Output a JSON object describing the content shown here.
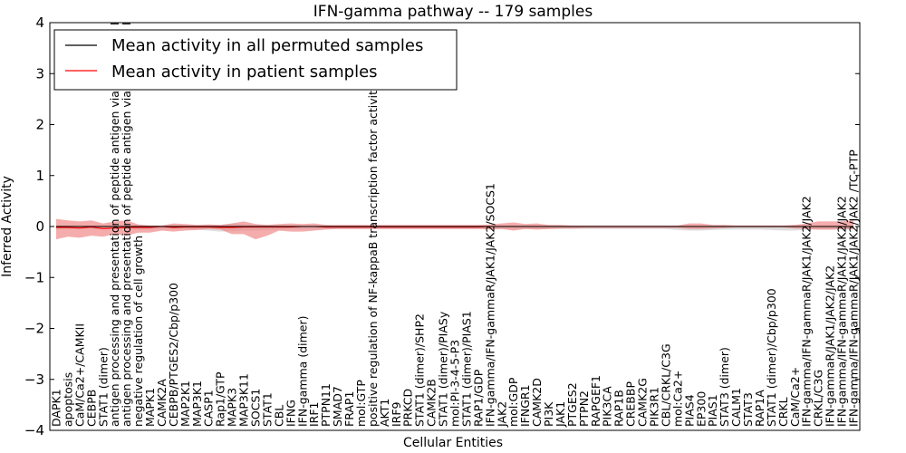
{
  "chart_data": {
    "type": "line",
    "title": "IFN-gamma pathway -- 179 samples",
    "xlabel": "Cellular Entities",
    "ylabel": "Inferred Activity",
    "ylim": [
      -4,
      4
    ],
    "yticks": [
      "−4",
      "−3",
      "−2",
      "−1",
      "0",
      "1",
      "2",
      "3",
      "4"
    ],
    "legend_position": "upper-left",
    "categories": [
      "DAPK1",
      "apoptosis",
      "CaM/Ca2+/CAMKII",
      "CEBPB",
      "STAT1 (dimer)",
      "antigen processing and presentation of peptide antigen via MHC class I",
      "antigen processing and presentation of peptide antigen via MHC class II",
      "negative regulation of cell growth",
      "MAPK1",
      "CAMK2A",
      "CEBPB/PTGES2/Cbp/p300",
      "MAP2K1",
      "MAP3K1",
      "CASP1",
      "Rap1/GTP",
      "MAPK3",
      "MAP3K11",
      "SOCS1",
      "STAT1",
      "CBL",
      "IFNG",
      "IFN-gamma (dimer)",
      "IRF1",
      "PTPN11",
      "SMAD7",
      "FRAP1",
      "mol:GTP",
      "positive regulation of NF-kappaB transcription factor activity",
      "AKT1",
      "IRF9",
      "PRKCD",
      "STAT1 (dimer)/SHP2",
      "CAMK2B",
      "STAT1 (dimer)/PIASy",
      "mol:PI-3-4-5-P3",
      "STAT1 (dimer)/PIAS1",
      "RAP1/GDP",
      "IFN-gamma/IFN-gammaR/JAK1/JAK2/SOCS1",
      "JAK2",
      "mol:GDP",
      "IFNGR1",
      "CAMK2D",
      "PI3K",
      "JAK1",
      "PTGES2",
      "PTPN2",
      "RAPGEF1",
      "PIK3CA",
      "RAP1B",
      "CREBBP",
      "CAMK2G",
      "PIK3R1",
      "CBL/CRKL/C3G",
      "mol:Ca2+",
      "PIAS4",
      "EP300",
      "PIAS1",
      "STAT3 (dimer)",
      "CALM1",
      "STAT3",
      "RAP1A",
      "STAT1 (dimer)/Cbp/p300",
      "CRKL",
      "CaM/Ca2+",
      "IFN-gamma/IFN-gammaR/JAK1/JAK2/JAK2",
      "CRKL/C3G",
      "IFN-gammaR/JAK1/JAK2/JAK2",
      "IFN-gamma/IFN-gammaR/JAK1/JAK2/JAK2",
      "IFN-gamma/IFN-gammaR/JAK1/JAK2/JAK2 /TC-PTP"
    ],
    "series": [
      {
        "name": "Mean activity in all permuted samples",
        "color": "#000000",
        "values": [
          0,
          0,
          0,
          0,
          0,
          0,
          0,
          0,
          0,
          0,
          0,
          0,
          0,
          0,
          0,
          0,
          0,
          0,
          0,
          0,
          0,
          0,
          0,
          0,
          0,
          0,
          0,
          0,
          0,
          0,
          0,
          0,
          0,
          0,
          0,
          0,
          0,
          0,
          0,
          0,
          0,
          0,
          0,
          0,
          0,
          0,
          0,
          0,
          0,
          0,
          0,
          0,
          0,
          0,
          0,
          0,
          0,
          0,
          0,
          0,
          0,
          0,
          0,
          0,
          0,
          0,
          0,
          0,
          0
        ],
        "band_upper": [
          0.02,
          0.02,
          0.02,
          0.02,
          0.02,
          0.02,
          0.02,
          0.02,
          0.02,
          0.02,
          0.02,
          0.02,
          0.02,
          0.03,
          0.03,
          0.06,
          0.05,
          0.03,
          0.03,
          0.02,
          0.02,
          0.02,
          0.02,
          0.02,
          0.02,
          0.02,
          0.02,
          0.02,
          0.02,
          0.02,
          0.02,
          0.02,
          0.02,
          0.02,
          0.02,
          0.02,
          0.02,
          0.02,
          0.02,
          0.02,
          0.02,
          0.02,
          0.02,
          0.02,
          0.02,
          0.02,
          0.02,
          0.02,
          0.02,
          0.02,
          0.02,
          0.02,
          0.02,
          0.02,
          0.02,
          0.02,
          0.02,
          0.02,
          0.02,
          0.02,
          0.02,
          0.02,
          0.02,
          0.02,
          0.02,
          0.02,
          0.02,
          0.02,
          0.02
        ],
        "band_lower": [
          -0.06,
          -0.05,
          -0.05,
          -0.05,
          -0.05,
          -0.05,
          -0.05,
          -0.06,
          -0.06,
          -0.05,
          -0.05,
          -0.05,
          -0.06,
          -0.08,
          -0.1,
          -0.09,
          -0.08,
          -0.08,
          -0.07,
          -0.06,
          -0.05,
          -0.05,
          -0.05,
          -0.05,
          -0.05,
          -0.05,
          -0.05,
          -0.05,
          -0.05,
          -0.05,
          -0.05,
          -0.05,
          -0.05,
          -0.05,
          -0.05,
          -0.05,
          -0.05,
          -0.05,
          -0.05,
          -0.05,
          -0.05,
          -0.05,
          -0.05,
          -0.05,
          -0.05,
          -0.05,
          -0.05,
          -0.05,
          -0.05,
          -0.05,
          -0.05,
          -0.05,
          -0.05,
          -0.07,
          -0.08,
          -0.08,
          -0.07,
          -0.06,
          -0.06,
          -0.06,
          -0.06,
          -0.07,
          -0.08,
          -0.08,
          -0.06,
          -0.06,
          -0.06,
          -0.06,
          -0.06
        ]
      },
      {
        "name": "Mean activity in patient samples",
        "color": "#ff0000",
        "values": [
          -0.02,
          -0.02,
          -0.03,
          -0.01,
          -0.04,
          -0.03,
          -0.02,
          -0.02,
          -0.02,
          0.0,
          -0.02,
          -0.01,
          -0.01,
          -0.01,
          -0.02,
          -0.02,
          -0.01,
          -0.01,
          -0.01,
          -0.01,
          -0.01,
          0.0,
          0.0,
          -0.01,
          -0.01,
          -0.01,
          -0.01,
          -0.01,
          -0.01,
          -0.01,
          -0.01,
          -0.01,
          -0.01,
          -0.01,
          -0.01,
          -0.01,
          -0.01,
          0.0,
          0.0,
          0.0,
          0.0,
          0.0,
          0.0,
          0.0,
          0.0,
          0.0,
          0.0,
          0.0,
          0.0,
          0.0,
          0.0,
          0.0,
          0.0,
          0.0,
          0.0,
          0.0,
          0.0,
          0.0,
          0.0,
          0.0,
          0.0,
          0.0,
          0.0,
          0.0,
          0.0,
          0.0,
          0.0,
          0.0,
          0.0
        ],
        "band_upper": [
          0.15,
          0.12,
          0.1,
          0.12,
          0.06,
          0.1,
          0.12,
          0.04,
          0.02,
          0.02,
          0.06,
          0.05,
          0.03,
          0.04,
          0.03,
          0.06,
          0.1,
          0.05,
          0.03,
          0.05,
          0.06,
          0.05,
          0.06,
          0.03,
          0.03,
          0.03,
          0.03,
          0.03,
          0.03,
          0.03,
          0.03,
          0.03,
          0.03,
          0.03,
          0.03,
          0.03,
          0.03,
          0.04,
          0.06,
          0.08,
          0.05,
          0.06,
          0.03,
          0.03,
          0.02,
          0.02,
          0.02,
          0.02,
          0.02,
          0.02,
          0.02,
          0.02,
          0.02,
          0.02,
          0.06,
          0.06,
          0.03,
          0.03,
          0.02,
          0.02,
          0.02,
          0.02,
          0.02,
          0.03,
          0.06,
          0.1,
          0.1,
          0.1,
          0.12
        ],
        "band_lower": [
          -0.25,
          -0.2,
          -0.22,
          -0.18,
          -0.2,
          -0.15,
          -0.18,
          -0.12,
          -0.12,
          -0.08,
          -0.1,
          -0.08,
          -0.07,
          -0.05,
          -0.06,
          -0.15,
          -0.15,
          -0.25,
          -0.18,
          -0.08,
          -0.1,
          -0.1,
          -0.08,
          -0.06,
          -0.05,
          -0.05,
          -0.05,
          -0.05,
          -0.05,
          -0.05,
          -0.05,
          -0.05,
          -0.05,
          -0.05,
          -0.05,
          -0.05,
          -0.05,
          -0.06,
          -0.05,
          -0.08,
          -0.05,
          -0.06,
          -0.05,
          -0.04,
          -0.04,
          -0.03,
          -0.03,
          -0.03,
          -0.03,
          -0.03,
          -0.03,
          -0.03,
          -0.03,
          -0.03,
          -0.05,
          -0.05,
          -0.04,
          -0.03,
          -0.02,
          -0.02,
          -0.02,
          -0.02,
          -0.02,
          -0.04,
          -0.05,
          -0.06,
          -0.06,
          -0.05,
          -0.05
        ]
      }
    ]
  }
}
